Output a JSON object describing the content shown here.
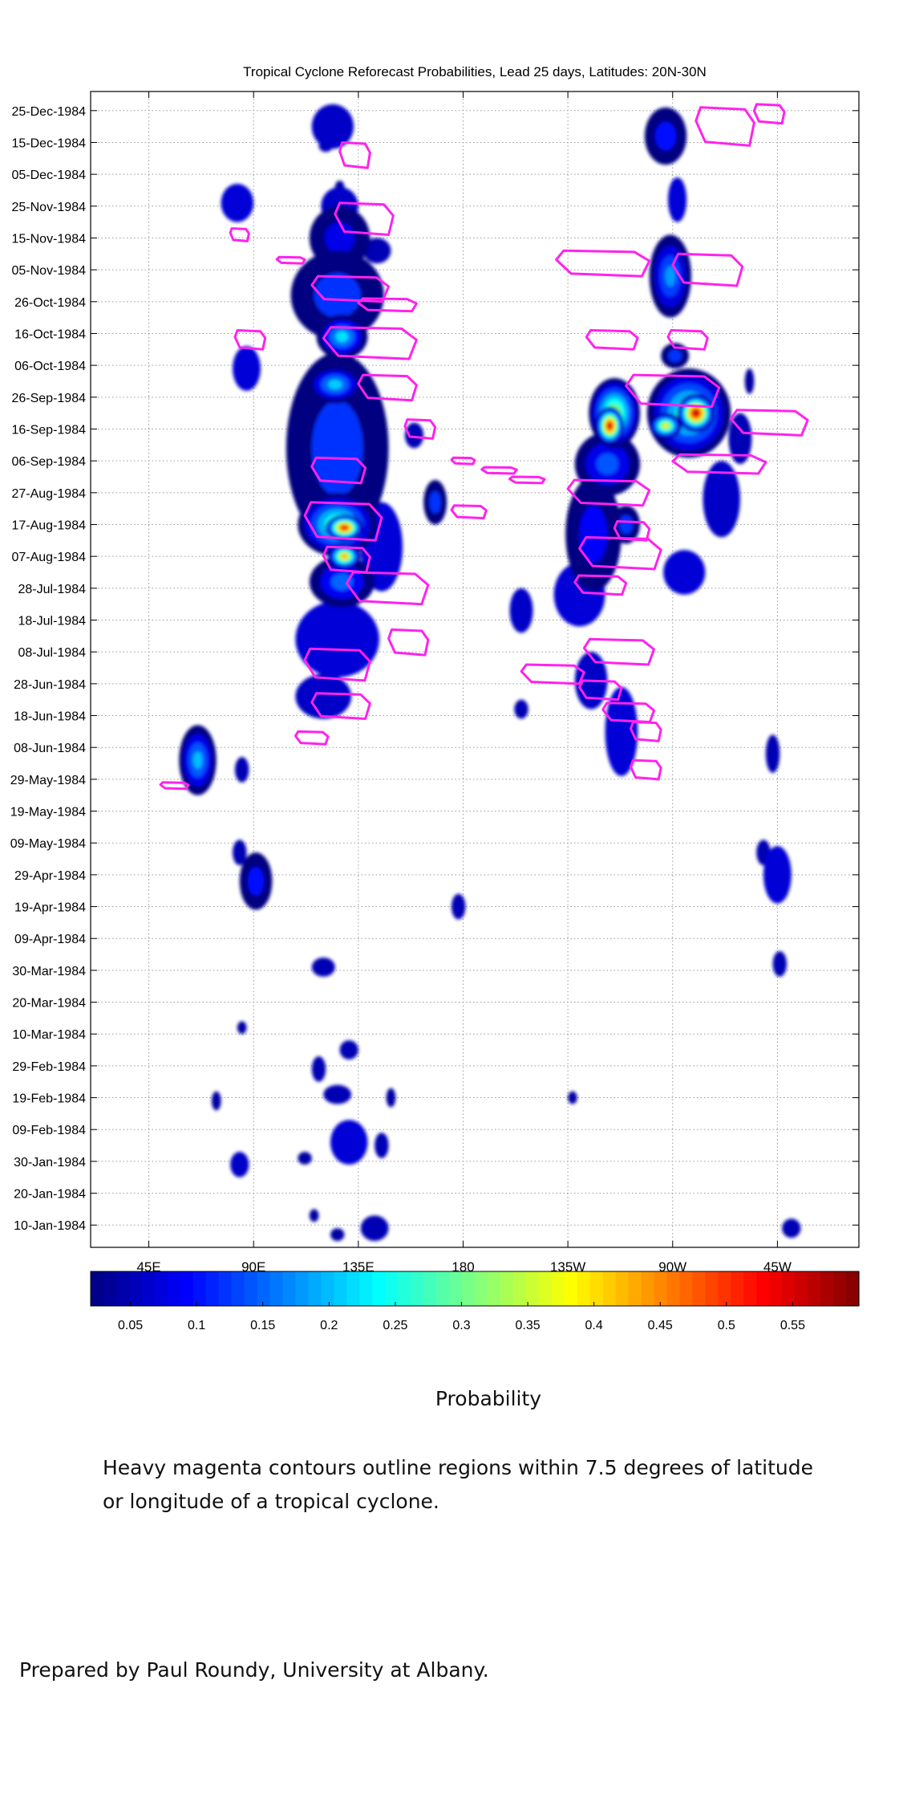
{
  "chart_data": {
    "type": "heatmap",
    "title": "Tropical Cyclone Reforecast Probabilities, Lead 25 days, Latitudes: 20N-30N",
    "xlabel": "",
    "ylabel": "",
    "x_ticks": [
      {
        "label": "45E",
        "lon": 45
      },
      {
        "label": "90E",
        "lon": 90
      },
      {
        "label": "135E",
        "lon": 135
      },
      {
        "label": "180",
        "lon": 180
      },
      {
        "label": "135W",
        "lon": 225
      },
      {
        "label": "90W",
        "lon": 270
      },
      {
        "label": "45W",
        "lon": 315
      }
    ],
    "xlim": [
      20,
      350
    ],
    "y_ticks": [
      "10-Jan-1984",
      "20-Jan-1984",
      "30-Jan-1984",
      "09-Feb-1984",
      "19-Feb-1984",
      "29-Feb-1984",
      "10-Mar-1984",
      "20-Mar-1984",
      "30-Mar-1984",
      "09-Apr-1984",
      "19-Apr-1984",
      "29-Apr-1984",
      "09-May-1984",
      "19-May-1984",
      "29-May-1984",
      "08-Jun-1984",
      "18-Jun-1984",
      "28-Jun-1984",
      "08-Jul-1984",
      "18-Jul-1984",
      "28-Jul-1984",
      "07-Aug-1984",
      "17-Aug-1984",
      "27-Aug-1984",
      "06-Sep-1984",
      "16-Sep-1984",
      "26-Sep-1984",
      "06-Oct-1984",
      "16-Oct-1984",
      "26-Oct-1984",
      "05-Nov-1984",
      "15-Nov-1984",
      "25-Nov-1984",
      "05-Dec-1984",
      "15-Dec-1984",
      "25-Dec-1984"
    ],
    "ylim": [
      "03-Jan-1984",
      "31-Dec-1984"
    ],
    "grid": true,
    "colorbar": {
      "label": "Probability",
      "ticks": [
        "0.05",
        "0.1",
        "0.15",
        "0.2",
        "0.25",
        "0.3",
        "0.35",
        "0.4",
        "0.45",
        "0.5",
        "0.55"
      ],
      "range": [
        0.02,
        0.6
      ],
      "colormap": "jet"
    },
    "blobs": [
      {
        "lon": 124,
        "date": "20-Dec-1984",
        "rx": 9,
        "rd": 7,
        "p": 0.06
      },
      {
        "lon": 121,
        "date": "14-Dec-1984",
        "rx": 3,
        "rd": 2,
        "p": 0.05
      },
      {
        "lon": 127,
        "date": "01-Dec-1984",
        "rx": 2,
        "rd": 2,
        "p": 0.04
      },
      {
        "lon": 83,
        "date": "26-Nov-1984",
        "rx": 7,
        "rd": 6,
        "p": 0.07
      },
      {
        "lon": 127,
        "date": "25-Nov-1984",
        "rx": 8,
        "rd": 6,
        "p": 0.06
      },
      {
        "lon": 127,
        "date": "15-Nov-1984",
        "rx": 13,
        "rd": 10,
        "p": 0.08
      },
      {
        "lon": 143,
        "date": "11-Nov-1984",
        "rx": 6,
        "rd": 4,
        "p": 0.05
      },
      {
        "lon": 126,
        "date": "28-Oct-1984",
        "rx": 20,
        "rd": 14,
        "p": 0.12
      },
      {
        "lon": 128,
        "date": "15-Oct-1984",
        "rx": 11,
        "rd": 7,
        "p": 0.22
      },
      {
        "lon": 125,
        "date": "30-Sep-1984",
        "rx": 12,
        "rd": 6,
        "p": 0.21
      },
      {
        "lon": 126,
        "date": "10-Sep-1984",
        "rx": 22,
        "rd": 30,
        "p": 0.12
      },
      {
        "lon": 126,
        "date": "17-Aug-1984",
        "rx": 17,
        "rd": 10,
        "p": 0.3
      },
      {
        "lon": 129,
        "date": "16-Aug-1984",
        "rx": 8,
        "rd": 4,
        "p": 0.56
      },
      {
        "lon": 129,
        "date": "07-Aug-1984",
        "rx": 7,
        "rd": 4,
        "p": 0.45
      },
      {
        "lon": 128,
        "date": "30-Jul-1984",
        "rx": 14,
        "rd": 8,
        "p": 0.15
      },
      {
        "lon": 126,
        "date": "12-Jul-1984",
        "rx": 18,
        "rd": 12,
        "p": 0.07
      },
      {
        "lon": 120,
        "date": "24-Jun-1984",
        "rx": 12,
        "rd": 7,
        "p": 0.06
      },
      {
        "lon": 145,
        "date": "10-Aug-1984",
        "rx": 9,
        "rd": 14,
        "p": 0.07
      },
      {
        "lon": 168,
        "date": "24-Aug-1984",
        "rx": 5,
        "rd": 7,
        "p": 0.12
      },
      {
        "lon": 159,
        "date": "14-Sep-1984",
        "rx": 4,
        "rd": 4,
        "p": 0.05
      },
      {
        "lon": 87,
        "date": "05-Oct-1984",
        "rx": 6,
        "rd": 7,
        "p": 0.07
      },
      {
        "lon": 267,
        "date": "17-Dec-1984",
        "rx": 9,
        "rd": 9,
        "p": 0.1
      },
      {
        "lon": 272,
        "date": "27-Nov-1984",
        "rx": 4,
        "rd": 7,
        "p": 0.07
      },
      {
        "lon": 269,
        "date": "03-Nov-1984",
        "rx": 9,
        "rd": 13,
        "p": 0.18
      },
      {
        "lon": 271,
        "date": "09-Oct-1984",
        "rx": 6,
        "rd": 4,
        "p": 0.12
      },
      {
        "lon": 245,
        "date": "21-Sep-1984",
        "rx": 11,
        "rd": 11,
        "p": 0.35
      },
      {
        "lon": 243,
        "date": "17-Sep-1984",
        "rx": 6,
        "rd": 6,
        "p": 0.58
      },
      {
        "lon": 277,
        "date": "21-Sep-1984",
        "rx": 18,
        "rd": 14,
        "p": 0.3
      },
      {
        "lon": 280,
        "date": "21-Sep-1984",
        "rx": 8,
        "rd": 6,
        "p": 0.6
      },
      {
        "lon": 267,
        "date": "17-Sep-1984",
        "rx": 7,
        "rd": 4,
        "p": 0.4
      },
      {
        "lon": 242,
        "date": "05-Sep-1984",
        "rx": 14,
        "rd": 10,
        "p": 0.14
      },
      {
        "lon": 236,
        "date": "14-Aug-1984",
        "rx": 12,
        "rd": 18,
        "p": 0.09
      },
      {
        "lon": 250,
        "date": "17-Aug-1984",
        "rx": 6,
        "rd": 6,
        "p": 0.12
      },
      {
        "lon": 230,
        "date": "26-Jul-1984",
        "rx": 11,
        "rd": 10,
        "p": 0.07
      },
      {
        "lon": 275,
        "date": "02-Aug-1984",
        "rx": 9,
        "rd": 7,
        "p": 0.07
      },
      {
        "lon": 291,
        "date": "25-Aug-1984",
        "rx": 8,
        "rd": 12,
        "p": 0.06
      },
      {
        "lon": 299,
        "date": "13-Sep-1984",
        "rx": 5,
        "rd": 8,
        "p": 0.05
      },
      {
        "lon": 303,
        "date": "01-Oct-1984",
        "rx": 2,
        "rd": 4,
        "p": 0.04
      },
      {
        "lon": 248,
        "date": "13-Jun-1984",
        "rx": 7,
        "rd": 14,
        "p": 0.07
      },
      {
        "lon": 235,
        "date": "29-Jun-1984",
        "rx": 7,
        "rd": 9,
        "p": 0.06
      },
      {
        "lon": 205,
        "date": "21-Jul-1984",
        "rx": 5,
        "rd": 7,
        "p": 0.06
      },
      {
        "lon": 205,
        "date": "20-Jun-1984",
        "rx": 3,
        "rd": 3,
        "p": 0.05
      },
      {
        "lon": 66,
        "date": "04-Jun-1984",
        "rx": 8,
        "rd": 11,
        "p": 0.2
      },
      {
        "lon": 85,
        "date": "01-Jun-1984",
        "rx": 3,
        "rd": 4,
        "p": 0.05
      },
      {
        "lon": 91,
        "date": "27-Apr-1984",
        "rx": 7,
        "rd": 9,
        "p": 0.1
      },
      {
        "lon": 84,
        "date": "06-May-1984",
        "rx": 3,
        "rd": 4,
        "p": 0.05
      },
      {
        "lon": 178,
        "date": "19-Apr-1984",
        "rx": 3,
        "rd": 4,
        "p": 0.05
      },
      {
        "lon": 313,
        "date": "06-Jun-1984",
        "rx": 3,
        "rd": 6,
        "p": 0.05
      },
      {
        "lon": 315,
        "date": "29-Apr-1984",
        "rx": 6,
        "rd": 9,
        "p": 0.07
      },
      {
        "lon": 309,
        "date": "06-May-1984",
        "rx": 3,
        "rd": 4,
        "p": 0.05
      },
      {
        "lon": 316,
        "date": "01-Apr-1984",
        "rx": 3,
        "rd": 4,
        "p": 0.05
      },
      {
        "lon": 120,
        "date": "31-Mar-1984",
        "rx": 5,
        "rd": 3,
        "p": 0.05
      },
      {
        "lon": 131,
        "date": "05-Mar-1984",
        "rx": 4,
        "rd": 3,
        "p": 0.05
      },
      {
        "lon": 118,
        "date": "28-Feb-1984",
        "rx": 3,
        "rd": 4,
        "p": 0.05
      },
      {
        "lon": 126,
        "date": "20-Feb-1984",
        "rx": 6,
        "rd": 3,
        "p": 0.05
      },
      {
        "lon": 131,
        "date": "05-Feb-1984",
        "rx": 8,
        "rd": 7,
        "p": 0.07
      },
      {
        "lon": 145,
        "date": "04-Feb-1984",
        "rx": 3,
        "rd": 4,
        "p": 0.05
      },
      {
        "lon": 149,
        "date": "19-Feb-1984",
        "rx": 2,
        "rd": 3,
        "p": 0.04
      },
      {
        "lon": 84,
        "date": "29-Jan-1984",
        "rx": 4,
        "rd": 4,
        "p": 0.06
      },
      {
        "lon": 74,
        "date": "18-Feb-1984",
        "rx": 2,
        "rd": 3,
        "p": 0.04
      },
      {
        "lon": 112,
        "date": "31-Jan-1984",
        "rx": 3,
        "rd": 2,
        "p": 0.04
      },
      {
        "lon": 142,
        "date": "09-Jan-1984",
        "rx": 6,
        "rd": 4,
        "p": 0.05
      },
      {
        "lon": 126,
        "date": "07-Jan-1984",
        "rx": 3,
        "rd": 2,
        "p": 0.04
      },
      {
        "lon": 116,
        "date": "13-Jan-1984",
        "rx": 2,
        "rd": 2,
        "p": 0.04
      },
      {
        "lon": 321,
        "date": "09-Jan-1984",
        "rx": 4,
        "rd": 3,
        "p": 0.05
      },
      {
        "lon": 85,
        "date": "12-Mar-1984",
        "rx": 2,
        "rd": 2,
        "p": 0.04
      },
      {
        "lon": 227,
        "date": "19-Feb-1984",
        "rx": 2,
        "rd": 2,
        "p": 0.04
      }
    ],
    "tc_contours": [
      {
        "date": "20-Dec-1984",
        "lon0": 280,
        "lon1": 305,
        "dd": 6
      },
      {
        "date": "24-Dec-1984",
        "lon0": 305,
        "lon1": 318,
        "dd": 3
      },
      {
        "date": "11-Dec-1984",
        "lon0": 127,
        "lon1": 140,
        "dd": 4
      },
      {
        "date": "21-Nov-1984",
        "lon0": 125,
        "lon1": 150,
        "dd": 5
      },
      {
        "date": "16-Nov-1984",
        "lon0": 80,
        "lon1": 88,
        "dd": 2
      },
      {
        "date": "05-Nov-1984",
        "lon0": 270,
        "lon1": 300,
        "dd": 5
      },
      {
        "date": "07-Nov-1984",
        "lon0": 220,
        "lon1": 260,
        "dd": 4
      },
      {
        "date": "08-Nov-1984",
        "lon0": 100,
        "lon1": 112,
        "dd": 1
      },
      {
        "date": "30-Oct-1984",
        "lon0": 115,
        "lon1": 148,
        "dd": 4
      },
      {
        "date": "25-Oct-1984",
        "lon0": 135,
        "lon1": 160,
        "dd": 2
      },
      {
        "date": "14-Oct-1984",
        "lon0": 82,
        "lon1": 95,
        "dd": 3
      },
      {
        "date": "13-Oct-1984",
        "lon0": 120,
        "lon1": 160,
        "dd": 5
      },
      {
        "date": "14-Oct-1984",
        "lon0": 233,
        "lon1": 255,
        "dd": 3
      },
      {
        "date": "14-Oct-1984",
        "lon0": 268,
        "lon1": 285,
        "dd": 3
      },
      {
        "date": "29-Sep-1984",
        "lon0": 135,
        "lon1": 160,
        "dd": 4
      },
      {
        "date": "28-Sep-1984",
        "lon0": 250,
        "lon1": 290,
        "dd": 5
      },
      {
        "date": "18-Sep-1984",
        "lon0": 295,
        "lon1": 328,
        "dd": 4
      },
      {
        "date": "16-Sep-1984",
        "lon0": 155,
        "lon1": 168,
        "dd": 3
      },
      {
        "date": "05-Sep-1984",
        "lon0": 270,
        "lon1": 310,
        "dd": 3
      },
      {
        "date": "03-Sep-1984",
        "lon0": 115,
        "lon1": 138,
        "dd": 4
      },
      {
        "date": "06-Sep-1984",
        "lon0": 175,
        "lon1": 185,
        "dd": 1
      },
      {
        "date": "03-Sep-1984",
        "lon0": 188,
        "lon1": 203,
        "dd": 1
      },
      {
        "date": "31-Aug-1984",
        "lon0": 200,
        "lon1": 215,
        "dd": 1
      },
      {
        "date": "27-Aug-1984",
        "lon0": 225,
        "lon1": 260,
        "dd": 4
      },
      {
        "date": "21-Aug-1984",
        "lon0": 175,
        "lon1": 190,
        "dd": 2
      },
      {
        "date": "18-Aug-1984",
        "lon0": 112,
        "lon1": 145,
        "dd": 6
      },
      {
        "date": "15-Aug-1984",
        "lon0": 245,
        "lon1": 260,
        "dd": 3
      },
      {
        "date": "08-Aug-1984",
        "lon0": 230,
        "lon1": 265,
        "dd": 5
      },
      {
        "date": "06-Aug-1984",
        "lon0": 120,
        "lon1": 140,
        "dd": 4
      },
      {
        "date": "29-Jul-1984",
        "lon0": 228,
        "lon1": 250,
        "dd": 3
      },
      {
        "date": "28-Jul-1984",
        "lon0": 130,
        "lon1": 165,
        "dd": 5
      },
      {
        "date": "11-Jul-1984",
        "lon0": 148,
        "lon1": 165,
        "dd": 4
      },
      {
        "date": "08-Jul-1984",
        "lon0": 232,
        "lon1": 262,
        "dd": 4
      },
      {
        "date": "04-Jul-1984",
        "lon0": 112,
        "lon1": 140,
        "dd": 5
      },
      {
        "date": "01-Jul-1984",
        "lon0": 205,
        "lon1": 232,
        "dd": 3
      },
      {
        "date": "26-Jun-1984",
        "lon0": 230,
        "lon1": 248,
        "dd": 3
      },
      {
        "date": "21-Jun-1984",
        "lon0": 115,
        "lon1": 140,
        "dd": 4
      },
      {
        "date": "19-Jun-1984",
        "lon0": 240,
        "lon1": 262,
        "dd": 3
      },
      {
        "date": "13-Jun-1984",
        "lon0": 252,
        "lon1": 265,
        "dd": 3
      },
      {
        "date": "11-Jun-1984",
        "lon0": 108,
        "lon1": 122,
        "dd": 2
      },
      {
        "date": "01-Jun-1984",
        "lon0": 252,
        "lon1": 265,
        "dd": 3
      },
      {
        "date": "27-May-1984",
        "lon0": 50,
        "lon1": 62,
        "dd": 1
      }
    ]
  },
  "texts": {
    "colorbar_label": "Probability",
    "note_line1": "Heavy magenta contours outline regions within 7.5 degrees of latitude",
    "note_line2": "or longitude of a tropical cyclone.",
    "credit": "Prepared by Paul Roundy, University at Albany."
  },
  "colors": {
    "contour": "#ff22ee",
    "grid": "#9a9a9a",
    "axis": "#000000"
  }
}
